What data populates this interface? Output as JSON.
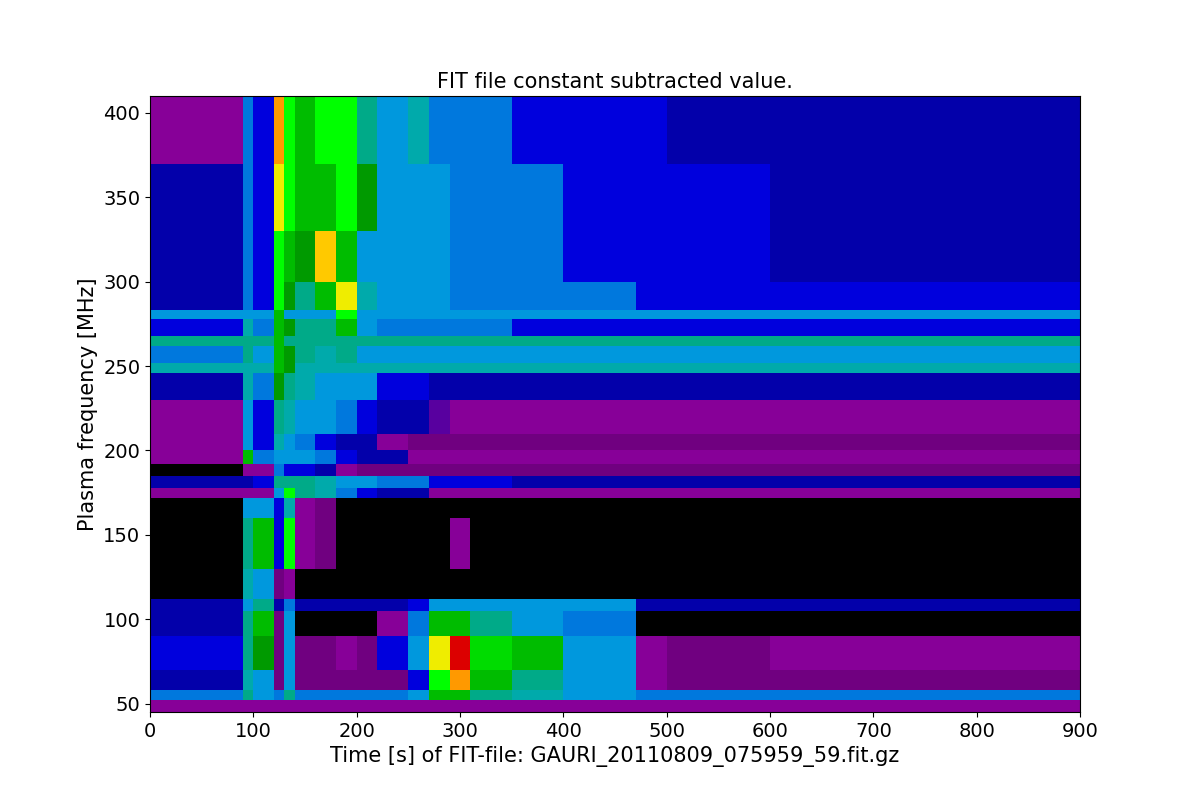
{
  "chart_data": {
    "type": "heatmap",
    "title": "FIT file constant subtracted value.",
    "x_label": "Time [s] of FIT-file: GAURI_20110809_075959_59.fit.gz",
    "y_label": "Plasma frequency [MHz]",
    "color": "nipy_spectral",
    "color_range": [
      0,
      10
    ],
    "xlim": [
      0,
      900
    ],
    "ylim": [
      45,
      410
    ],
    "xticks": [
      0,
      100,
      200,
      300,
      400,
      500,
      600,
      700,
      800,
      900
    ],
    "yticks": [
      50,
      100,
      150,
      200,
      250,
      300,
      350,
      400
    ],
    "x_edges": [
      0,
      90,
      100,
      120,
      130,
      140,
      160,
      180,
      200,
      220,
      250,
      270,
      290,
      310,
      350,
      400,
      470,
      500,
      600,
      900
    ],
    "y_edges": [
      45,
      52,
      58,
      70,
      90,
      105,
      112,
      130,
      160,
      172,
      178,
      185,
      192,
      200,
      210,
      230,
      246,
      252,
      262,
      268,
      278,
      283,
      300,
      330,
      370,
      410
    ],
    "cells": [
      [
        1,
        1,
        1,
        1,
        1,
        1,
        1,
        1,
        1,
        1,
        1,
        1,
        1,
        1,
        1,
        1,
        1,
        1,
        1
      ],
      [
        2.5,
        4,
        3,
        2.5,
        4,
        2.5,
        2.5,
        2.5,
        2.5,
        2.5,
        3,
        5,
        5,
        4,
        3.5,
        3,
        2.5,
        2.5,
        2.5
      ],
      [
        1.5,
        3.5,
        3,
        0.5,
        3,
        0.5,
        0.5,
        0.5,
        0.5,
        0.5,
        2,
        6,
        8,
        5,
        4,
        3,
        1,
        0.5,
        0.5
      ],
      [
        2,
        4,
        4.5,
        0.5,
        3,
        0.5,
        0.5,
        1,
        0.5,
        2,
        3,
        7,
        9,
        5.5,
        5,
        3,
        1,
        0.5,
        1
      ],
      [
        1.5,
        4,
        5,
        0.5,
        3,
        0,
        0,
        0,
        0,
        1,
        2.5,
        5,
        5,
        4,
        3,
        2.5,
        0,
        0,
        0
      ],
      [
        1.5,
        3,
        4,
        1.5,
        2.5,
        1.5,
        1.5,
        1.5,
        1.5,
        1.5,
        2,
        3,
        3,
        3,
        3,
        3,
        1.5,
        1.5,
        1.5
      ],
      [
        0,
        3.5,
        3,
        0.5,
        1,
        0,
        0,
        0,
        0,
        0,
        0,
        0,
        0,
        0,
        0,
        0,
        0,
        0,
        0
      ],
      [
        0,
        4,
        5,
        2,
        6,
        1,
        0.5,
        0,
        0,
        0,
        0,
        0,
        1,
        0,
        0,
        0,
        0,
        0,
        0
      ],
      [
        0,
        3,
        3,
        2,
        3.5,
        1,
        0.5,
        0,
        0,
        0,
        0,
        0,
        0,
        0,
        0,
        0,
        0,
        0,
        0
      ],
      [
        1,
        1,
        1,
        3,
        6,
        4,
        3.5,
        2.5,
        2,
        1.5,
        1.5,
        1,
        1,
        1,
        1,
        1,
        1,
        1,
        1
      ],
      [
        1.5,
        1.5,
        2,
        4,
        4,
        4,
        3.5,
        3,
        3,
        2.5,
        2.5,
        2,
        2,
        2,
        1.5,
        1.5,
        1.5,
        1.5,
        1.5
      ],
      [
        0,
        1,
        1,
        2.5,
        2,
        2,
        1.5,
        1,
        0.5,
        0.5,
        0.5,
        0.5,
        0.5,
        0.5,
        0.5,
        0.5,
        0.5,
        0.5,
        0.5
      ],
      [
        1,
        5,
        2.5,
        3,
        3,
        3,
        2.5,
        2,
        1.5,
        1.5,
        1,
        1,
        1,
        1,
        1,
        1,
        1,
        1,
        1
      ],
      [
        1,
        3,
        2,
        3.5,
        3,
        2.5,
        2,
        1.5,
        1.5,
        1,
        0.5,
        0.5,
        0.5,
        0.5,
        0.5,
        0.5,
        0.5,
        0.5,
        0.5
      ],
      [
        1,
        3,
        2,
        4,
        3.5,
        3,
        3,
        2.5,
        2,
        1.5,
        1.5,
        1.2,
        1,
        1,
        1,
        1,
        1,
        1,
        1
      ],
      [
        1.5,
        3.5,
        2.5,
        4.5,
        4,
        3.5,
        3,
        3,
        3,
        2,
        2,
        1.5,
        1.5,
        1.5,
        1.5,
        1.5,
        1.5,
        1.5,
        1.5
      ],
      [
        3.5,
        3.5,
        3.5,
        5,
        4.5,
        3.5,
        3.5,
        3.5,
        3.5,
        3.5,
        3.5,
        3.5,
        3.5,
        3.5,
        3.5,
        3.5,
        3.5,
        3.5,
        3.5
      ],
      [
        2.5,
        4,
        3,
        5,
        4.5,
        4,
        3.5,
        4,
        3,
        3,
        3,
        3,
        3,
        3,
        3,
        3,
        3,
        3,
        3
      ],
      [
        4,
        4,
        4,
        5,
        4,
        4,
        4,
        4,
        4,
        4,
        4,
        4,
        4,
        4,
        4,
        4,
        4,
        4,
        4
      ],
      [
        2,
        3.5,
        2.5,
        5,
        4.5,
        4,
        4,
        5,
        3,
        2.5,
        2.5,
        2.5,
        2.5,
        2.5,
        2,
        2,
        2,
        2,
        2
      ],
      [
        3,
        3,
        3,
        5,
        3,
        3,
        3,
        6,
        3,
        3,
        3,
        3,
        3,
        3,
        3,
        3,
        3,
        3,
        3
      ],
      [
        1.5,
        2.5,
        2,
        6,
        4.5,
        4,
        5,
        7,
        3.5,
        3,
        3,
        3,
        2.5,
        2.5,
        2.5,
        2.5,
        2,
        2,
        2
      ],
      [
        1.5,
        2.5,
        2,
        6,
        5,
        4.5,
        7.5,
        5,
        3,
        3,
        3,
        3,
        2.5,
        2.5,
        2.5,
        2,
        2,
        2,
        1.5
      ],
      [
        1.5,
        2.5,
        2,
        7,
        6,
        5,
        5,
        6,
        4.5,
        3,
        3,
        3,
        2.5,
        2.5,
        2.5,
        2,
        2,
        2,
        1.5
      ],
      [
        1,
        2.5,
        2,
        8,
        6,
        5,
        6,
        6,
        4,
        3,
        3.5,
        2.5,
        2.5,
        2.5,
        2,
        2,
        2,
        1.5,
        1.5
      ]
    ]
  }
}
